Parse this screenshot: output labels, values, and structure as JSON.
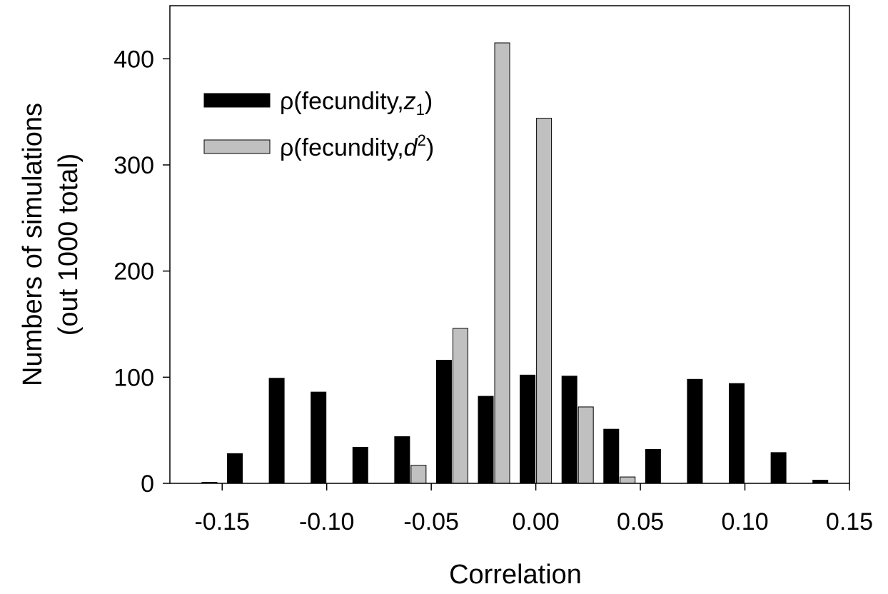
{
  "chart_data": {
    "type": "bar",
    "xlabel": "Correlation",
    "ylabel_lines": [
      "Numbers of simulations",
      "(out 1000 total)"
    ],
    "xlim": [
      -0.175,
      0.15
    ],
    "ylim": [
      0,
      450
    ],
    "xticks": [
      -0.15,
      -0.1,
      -0.05,
      0.0,
      0.05,
      0.1,
      0.15
    ],
    "xtick_labels": [
      "-0.15",
      "-0.10",
      "-0.05",
      "0.00",
      "0.05",
      "0.10",
      "0.15"
    ],
    "yticks": [
      0,
      100,
      200,
      300,
      400
    ],
    "ytick_labels": [
      "0",
      "100",
      "200",
      "300",
      "400"
    ],
    "bin_centers": [
      -0.16,
      -0.14,
      -0.12,
      -0.1,
      -0.08,
      -0.06,
      -0.04,
      -0.02,
      0.0,
      0.02,
      0.04,
      0.06,
      0.08,
      0.1,
      0.12,
      0.14
    ],
    "legend_position": "upper-left",
    "grid": false,
    "series": [
      {
        "name_parts": {
          "prefix": "ρ(fecundity,",
          "var": "z",
          "sub": "1",
          "sup": "",
          "suffix": ")"
        },
        "color": "#000000",
        "values": [
          0,
          28,
          99,
          86,
          34,
          44,
          116,
          82,
          102,
          101,
          51,
          32,
          98,
          94,
          29,
          3
        ]
      },
      {
        "name_parts": {
          "prefix": "ρ(fecundity,",
          "var": "d",
          "sub": "",
          "sup": "2",
          "suffix": ")"
        },
        "color": "#c0c0c0",
        "values": [
          1,
          0,
          0,
          0,
          0,
          17,
          146,
          415,
          344,
          72,
          6,
          0,
          0,
          0,
          0,
          0
        ]
      }
    ]
  }
}
